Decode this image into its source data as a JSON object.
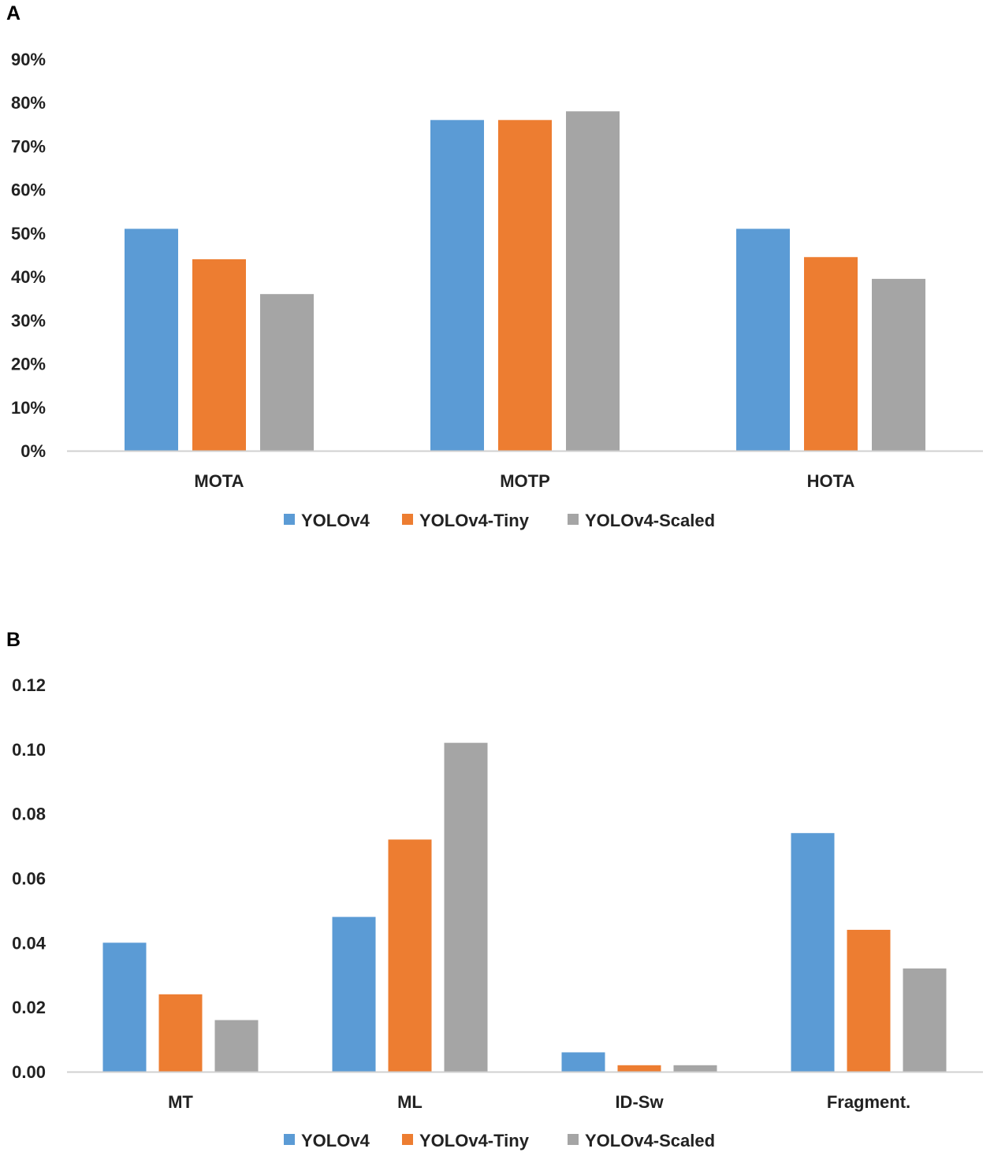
{
  "chart_data": [
    {
      "panel": "A",
      "type": "bar",
      "categories": [
        "MOTA",
        "MOTP",
        "HOTA"
      ],
      "series": [
        {
          "name": "YOLOv4",
          "color": "#5B9BD5",
          "values": [
            0.51,
            0.76,
            0.51
          ]
        },
        {
          "name": "YOLOv4-Tiny",
          "color": "#ED7D31",
          "values": [
            0.44,
            0.76,
            0.445
          ]
        },
        {
          "name": "YOLOv4-Scaled",
          "color": "#A5A5A5",
          "values": [
            0.36,
            0.78,
            0.395
          ]
        }
      ],
      "ylim": [
        0,
        0.9
      ],
      "yticks": [
        0,
        0.1,
        0.2,
        0.3,
        0.4,
        0.5,
        0.6,
        0.7,
        0.8,
        0.9
      ],
      "ytick_labels": [
        "0%",
        "10%",
        "20%",
        "30%",
        "40%",
        "50%",
        "60%",
        "70%",
        "80%",
        "90%"
      ],
      "grid": false,
      "legend": "bottom-center",
      "title": "",
      "xlabel": "",
      "ylabel": ""
    },
    {
      "panel": "B",
      "type": "bar",
      "categories": [
        "MT",
        "ML",
        "ID-Sw",
        "Fragment."
      ],
      "series": [
        {
          "name": "YOLOv4",
          "color": "#5B9BD5",
          "values": [
            0.04,
            0.048,
            0.006,
            0.074
          ]
        },
        {
          "name": "YOLOv4-Tiny",
          "color": "#ED7D31",
          "values": [
            0.024,
            0.072,
            0.002,
            0.044
          ]
        },
        {
          "name": "YOLOv4-Scaled",
          "color": "#A5A5A5",
          "values": [
            0.016,
            0.102,
            0.002,
            0.032
          ]
        }
      ],
      "ylim": [
        0,
        0.12
      ],
      "yticks": [
        0,
        0.02,
        0.04,
        0.06,
        0.08,
        0.1,
        0.12
      ],
      "ytick_labels": [
        "0.00",
        "0.02",
        "0.04",
        "0.06",
        "0.08",
        "0.10",
        "0.12"
      ],
      "grid": false,
      "legend": "bottom-center",
      "title": "",
      "xlabel": "",
      "ylabel": ""
    }
  ]
}
